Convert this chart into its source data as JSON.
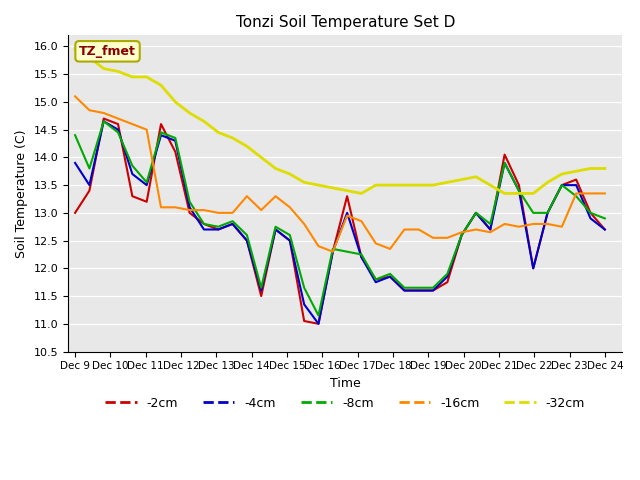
{
  "title": "Tonzi Soil Temperature Set D",
  "xlabel": "Time",
  "ylabel": "Soil Temperature (C)",
  "ylim": [
    10.5,
    16.2
  ],
  "plot_bg": "#e8e8e8",
  "legend_label": "TZ_fmet",
  "xtick_labels": [
    "Dec 9",
    "Dec 10",
    "Dec 11",
    "Dec 12",
    "Dec 13",
    "Dec 14",
    "Dec 15",
    "Dec 16",
    "Dec 17",
    "Dec 18",
    "Dec 19",
    "Dec 20",
    "Dec 21",
    "Dec 22",
    "Dec 23",
    "Dec 24"
  ],
  "xtick_positions": [
    0,
    1,
    2,
    3,
    4,
    5,
    6,
    7,
    8,
    9,
    10,
    11,
    12,
    13,
    14,
    15
  ],
  "series_order": [
    "-2cm",
    "-4cm",
    "-8cm",
    "-16cm",
    "-32cm"
  ],
  "series": {
    "-2cm": {
      "color": "#cc0000",
      "lw": 1.5
    },
    "-4cm": {
      "color": "#0000cc",
      "lw": 1.5
    },
    "-8cm": {
      "color": "#00aa00",
      "lw": 1.5
    },
    "-16cm": {
      "color": "#ff8800",
      "lw": 1.5
    },
    "-32cm": {
      "color": "#dddd00",
      "lw": 2.0
    }
  },
  "data": {
    "-2cm": [
      13.0,
      13.4,
      14.7,
      14.6,
      13.3,
      13.2,
      14.6,
      14.1,
      13.0,
      12.8,
      12.7,
      12.8,
      12.5,
      11.5,
      12.7,
      12.5,
      11.05,
      11.0,
      12.3,
      13.3,
      12.2,
      11.8,
      11.85,
      11.6,
      11.6,
      11.6,
      11.75,
      12.6,
      13.0,
      12.7,
      14.05,
      13.5,
      12.0,
      13.0,
      13.5,
      13.6,
      13.0,
      12.7
    ],
    "-4cm": [
      13.9,
      13.5,
      14.65,
      14.5,
      13.7,
      13.5,
      14.4,
      14.3,
      13.1,
      12.7,
      12.7,
      12.8,
      12.5,
      11.6,
      12.7,
      12.5,
      11.35,
      11.0,
      12.3,
      13.0,
      12.2,
      11.75,
      11.85,
      11.6,
      11.6,
      11.6,
      11.85,
      12.6,
      13.0,
      12.7,
      13.9,
      13.4,
      12.0,
      13.0,
      13.5,
      13.5,
      12.9,
      12.7
    ],
    "-8cm": [
      14.4,
      13.8,
      14.65,
      14.45,
      13.85,
      13.55,
      14.45,
      14.35,
      13.2,
      12.8,
      12.75,
      12.85,
      12.6,
      11.65,
      12.75,
      12.6,
      11.65,
      11.15,
      12.35,
      12.3,
      12.25,
      11.8,
      11.9,
      11.65,
      11.65,
      11.65,
      11.9,
      12.6,
      13.0,
      12.8,
      13.9,
      13.4,
      13.0,
      13.0,
      13.5,
      13.3,
      13.0,
      12.9
    ],
    "-16cm": [
      15.1,
      14.85,
      14.8,
      14.7,
      14.6,
      14.5,
      13.1,
      13.1,
      13.05,
      13.05,
      13.0,
      13.0,
      13.3,
      13.05,
      13.3,
      13.1,
      12.8,
      12.4,
      12.3,
      12.95,
      12.85,
      12.45,
      12.35,
      12.7,
      12.7,
      12.55,
      12.55,
      12.65,
      12.7,
      12.65,
      12.8,
      12.75,
      12.8,
      12.8,
      12.75,
      13.35,
      13.35,
      13.35
    ],
    "-32cm": [
      15.95,
      15.8,
      15.6,
      15.55,
      15.45,
      15.45,
      15.3,
      15.0,
      14.8,
      14.65,
      14.45,
      14.35,
      14.2,
      14.0,
      13.8,
      13.7,
      13.55,
      13.5,
      13.45,
      13.4,
      13.35,
      13.5,
      13.5,
      13.5,
      13.5,
      13.5,
      13.55,
      13.6,
      13.65,
      13.5,
      13.35,
      13.35,
      13.35,
      13.55,
      13.7,
      13.75,
      13.8,
      13.8
    ]
  }
}
